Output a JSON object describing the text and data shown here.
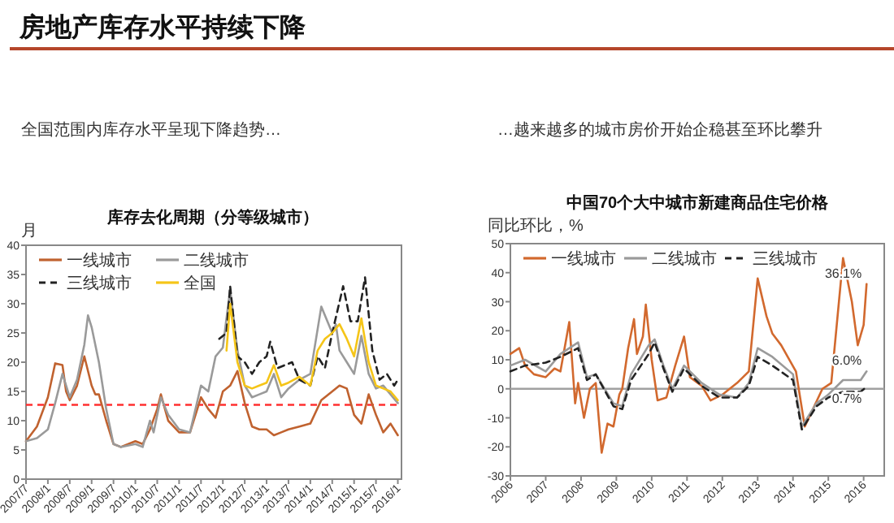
{
  "chart_data": [
    {
      "type": "line",
      "title": "库存去化周期（分等级城市）",
      "subtitle": "全国范围内库存水平呈现下降趋势…",
      "ylabel": "月",
      "annotations": [
        "房地产库存水平持续下降"
      ],
      "xlim": [
        "2007-07",
        "2016-02"
      ],
      "ylim": [
        0,
        40
      ],
      "yticks": [
        0,
        5,
        10,
        15,
        20,
        25,
        30,
        35,
        40
      ],
      "xticks": [
        {
          "value": "2007-07",
          "label": "2007/7"
        },
        {
          "value": "2008-01",
          "label": "2008/1"
        },
        {
          "value": "2008-07",
          "label": "2008/7"
        },
        {
          "value": "2009-01",
          "label": "2009/1"
        },
        {
          "value": "2009-07",
          "label": "2009/7"
        },
        {
          "value": "2010-01",
          "label": "2010/1"
        },
        {
          "value": "2010-07",
          "label": "2010/7"
        },
        {
          "value": "2011-01",
          "label": "2011/1"
        },
        {
          "value": "2011-07",
          "label": "2011/7"
        },
        {
          "value": "2012-01",
          "label": "2012/1"
        },
        {
          "value": "2012-07",
          "label": "2012/7"
        },
        {
          "value": "2013-01",
          "label": "2013/1"
        },
        {
          "value": "2013-07",
          "label": "2013/7"
        },
        {
          "value": "2014-01",
          "label": "2014/1"
        },
        {
          "value": "2014-07",
          "label": "2014/7"
        },
        {
          "value": "2015-01",
          "label": "2015/1"
        },
        {
          "value": "2015-07",
          "label": "2015/7"
        },
        {
          "value": "2016-01",
          "label": "2016/1"
        }
      ],
      "grid": false,
      "legend": "top left",
      "marker": "none",
      "ref_lines": [
        {
          "axis": "y",
          "value": 12.7,
          "color": "#ff3030",
          "line_style": "dashed"
        }
      ],
      "series": [
        {
          "name": "一线城市",
          "color": "#c0622f",
          "line_style": "solid",
          "x": [
            "2007-07",
            "2007-10",
            "2008-01",
            "2008-03",
            "2008-05",
            "2008-06",
            "2008-07",
            "2008-09",
            "2008-11",
            "2009-01",
            "2009-02",
            "2009-03",
            "2009-05",
            "2009-07",
            "2009-09",
            "2010-01",
            "2010-03",
            "2010-05",
            "2010-07",
            "2010-08",
            "2010-10",
            "2011-01",
            "2011-04",
            "2011-07",
            "2011-09",
            "2011-11",
            "2012-01",
            "2012-03",
            "2012-05",
            "2012-07",
            "2012-09",
            "2012-11",
            "2013-01",
            "2013-03",
            "2013-05",
            "2013-07",
            "2013-10",
            "2014-01",
            "2014-04",
            "2014-07",
            "2014-09",
            "2014-11",
            "2015-01",
            "2015-03",
            "2015-05",
            "2015-07",
            "2015-09",
            "2015-11",
            "2016-01"
          ],
          "values": [
            6.5,
            9,
            14,
            19.8,
            19.5,
            15,
            13.5,
            16,
            21,
            16,
            14.5,
            14.5,
            10,
            6,
            5.5,
            6.5,
            6,
            8.5,
            12,
            14.5,
            10,
            8,
            8,
            14,
            12,
            10.5,
            15,
            16,
            18.5,
            13,
            9,
            8.5,
            8.5,
            7.5,
            8,
            8.5,
            9,
            9.5,
            13.5,
            15,
            16,
            15.5,
            11,
            9.5,
            14.5,
            11,
            8,
            9.5,
            7.5
          ]
        },
        {
          "name": "二线城市",
          "color": "#9a9a9a",
          "line_style": "solid",
          "x": [
            "2007-07",
            "2007-10",
            "2008-01",
            "2008-03",
            "2008-05",
            "2008-07",
            "2008-09",
            "2008-11",
            "2008-12",
            "2009-01",
            "2009-03",
            "2009-05",
            "2009-07",
            "2009-09",
            "2010-01",
            "2010-03",
            "2010-05",
            "2010-06",
            "2010-08",
            "2010-10",
            "2011-01",
            "2011-04",
            "2011-07",
            "2011-09",
            "2011-11",
            "2012-01",
            "2012-03",
            "2012-05",
            "2012-07",
            "2012-09",
            "2012-11",
            "2013-01",
            "2013-03",
            "2013-05",
            "2013-07",
            "2013-10",
            "2014-01",
            "2014-04",
            "2014-07",
            "2014-08",
            "2014-09",
            "2014-11",
            "2015-01",
            "2015-03",
            "2015-05",
            "2015-07",
            "2015-09",
            "2015-11",
            "2016-01"
          ],
          "values": [
            6.5,
            7,
            8.5,
            13,
            18,
            14,
            17,
            23,
            28,
            26,
            20,
            12,
            6,
            5.5,
            6,
            5.5,
            10,
            8,
            14,
            11,
            8.5,
            8,
            16,
            15,
            21,
            22.5,
            32.5,
            22,
            16,
            14,
            14.5,
            15,
            18,
            14,
            15.5,
            17,
            18,
            29.5,
            25,
            26.5,
            22,
            20,
            18,
            24.5,
            18,
            15.5,
            16,
            14.5,
            13
          ]
        },
        {
          "name": "三线城市",
          "color": "#222222",
          "line_style": "dashed",
          "x": [
            "2011-12",
            "2012-02",
            "2012-03",
            "2012-05",
            "2012-07",
            "2012-09",
            "2012-11",
            "2013-01",
            "2013-02",
            "2013-04",
            "2013-06",
            "2013-08",
            "2013-10",
            "2014-01",
            "2014-03",
            "2014-05",
            "2014-07",
            "2014-10",
            "2014-12",
            "2015-02",
            "2015-04",
            "2015-06",
            "2015-08",
            "2015-10",
            "2015-12",
            "2016-01"
          ],
          "values": [
            24,
            25,
            33,
            21,
            20,
            18,
            20,
            21,
            23.5,
            19,
            19.5,
            20,
            17,
            16,
            21,
            19,
            25,
            33,
            27,
            27,
            34.5,
            22,
            17,
            18,
            16,
            17
          ]
        },
        {
          "name": "全国",
          "color": "#f5c518",
          "line_style": "solid",
          "x": [
            "2012-02",
            "2012-03",
            "2012-05",
            "2012-07",
            "2012-09",
            "2012-11",
            "2013-01",
            "2013-03",
            "2013-05",
            "2013-07",
            "2013-10",
            "2014-01",
            "2014-03",
            "2014-05",
            "2014-07",
            "2014-09",
            "2014-11",
            "2015-01",
            "2015-03",
            "2015-05",
            "2015-07",
            "2015-09",
            "2015-11",
            "2016-01"
          ],
          "values": [
            22,
            30,
            20,
            16,
            15.5,
            16,
            16.5,
            19.5,
            16,
            16.5,
            17.5,
            16,
            22,
            24,
            25,
            26.5,
            24,
            21,
            27.5,
            20,
            16,
            15.5,
            15,
            13.5
          ]
        }
      ]
    },
    {
      "type": "line",
      "title": "中国70个大中城市新建商品住宅价格",
      "subtitle": "…越来越多的城市房价开始企稳甚至环比攀升",
      "ylabel": "同比环比，%",
      "xlim": [
        "2006-01",
        "2016-08"
      ],
      "ylim": [
        -30,
        50
      ],
      "yticks": [
        -30,
        -20,
        -10,
        0,
        10,
        20,
        30,
        40,
        50
      ],
      "xticks": [
        "2006",
        "2007",
        "2008",
        "2009",
        "2010",
        "2011",
        "2012",
        "2013",
        "2014",
        "2015",
        "2016"
      ],
      "grid": false,
      "legend": "top left",
      "marker": "none",
      "ref_lines": [
        {
          "axis": "y",
          "value": 0,
          "color": "#a0a0a0",
          "line_style": "solid"
        }
      ],
      "annotations": [
        {
          "text": "36.1%",
          "x": "2016-02",
          "y": 36.1
        },
        {
          "text": "6.0%",
          "x": "2016-02",
          "y": 6.0
        },
        {
          "text": "0.7%",
          "x": "2016-02",
          "y": 0.7
        }
      ],
      "series": [
        {
          "name": "一线城市",
          "color": "#d2692e",
          "line_style": "solid",
          "x": [
            "2006-01",
            "2006-04",
            "2006-06",
            "2006-09",
            "2007-01",
            "2007-04",
            "2007-06",
            "2007-09",
            "2007-11",
            "2007-12",
            "2008-02",
            "2008-04",
            "2008-06",
            "2008-08",
            "2008-10",
            "2008-12",
            "2009-02",
            "2009-03",
            "2009-05",
            "2009-07",
            "2009-08",
            "2009-10",
            "2009-11",
            "2010-01",
            "2010-03",
            "2010-06",
            "2010-09",
            "2010-12",
            "2011-02",
            "2011-06",
            "2011-09",
            "2012-01",
            "2012-06",
            "2012-10",
            "2013-01",
            "2013-04",
            "2013-06",
            "2013-09",
            "2014-02",
            "2014-05",
            "2014-11",
            "2015-02",
            "2015-06",
            "2015-09",
            "2015-11",
            "2016-01",
            "2016-02"
          ],
          "values": [
            12,
            14,
            8,
            5,
            4,
            7,
            6,
            23,
            -5,
            2,
            -10,
            0,
            2,
            -22,
            -12,
            -13,
            -2,
            0,
            14,
            24,
            12,
            18,
            29,
            10,
            -4,
            -3,
            8,
            18,
            4,
            1,
            -4,
            -2,
            2,
            6,
            38,
            25,
            19,
            15,
            6,
            -13,
            0,
            2,
            45,
            30,
            15,
            22,
            36.1
          ]
        },
        {
          "name": "二线城市",
          "color": "#9a9a9a",
          "line_style": "solid",
          "x": [
            "2006-01",
            "2006-06",
            "2007-01",
            "2007-06",
            "2007-12",
            "2008-03",
            "2008-06",
            "2008-12",
            "2009-03",
            "2009-06",
            "2009-12",
            "2010-02",
            "2010-05",
            "2010-08",
            "2010-12",
            "2011-06",
            "2011-12",
            "2012-06",
            "2012-10",
            "2013-01",
            "2013-06",
            "2014-01",
            "2014-04",
            "2014-09",
            "2015-01",
            "2015-06",
            "2015-12",
            "2016-02"
          ],
          "values": [
            8,
            10,
            6,
            12,
            16,
            4,
            5,
            -5,
            -6,
            5,
            15,
            17,
            8,
            0,
            8,
            2,
            -2,
            -3,
            2,
            14,
            11,
            5,
            -13,
            -5,
            -2,
            3,
            3,
            6.0
          ]
        },
        {
          "name": "三线城市",
          "color": "#222222",
          "line_style": "dashed",
          "x": [
            "2006-01",
            "2006-06",
            "2007-01",
            "2007-06",
            "2007-12",
            "2008-03",
            "2008-06",
            "2008-12",
            "2009-03",
            "2009-06",
            "2009-12",
            "2010-02",
            "2010-05",
            "2010-08",
            "2010-12",
            "2011-06",
            "2011-12",
            "2012-06",
            "2012-10",
            "2013-01",
            "2013-06",
            "2014-01",
            "2014-04",
            "2014-09",
            "2015-01",
            "2015-06",
            "2015-12",
            "2016-02"
          ],
          "values": [
            6,
            8,
            9,
            11,
            14,
            3,
            5,
            -6,
            -7,
            3,
            12,
            16,
            7,
            -1,
            7,
            1,
            -3,
            -3,
            1,
            11,
            8,
            3,
            -14,
            -6,
            -3,
            -1,
            -1,
            0.7
          ]
        }
      ]
    }
  ]
}
